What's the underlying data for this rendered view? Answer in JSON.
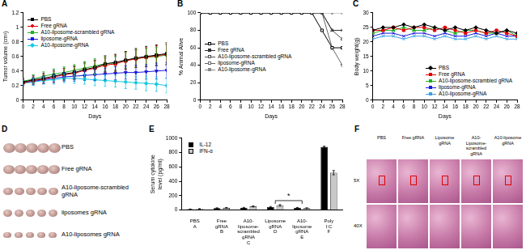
{
  "chart_data": [
    {
      "panel": "A",
      "type": "line",
      "x_label": "Days",
      "y_label": "Tumor volume (cm³)",
      "x": [
        0,
        2,
        4,
        6,
        8,
        10,
        12,
        14,
        16,
        18,
        20,
        22,
        24,
        26,
        28
      ],
      "xlim": [
        0,
        28
      ],
      "xticks": [
        0,
        2,
        4,
        6,
        8,
        10,
        12,
        14,
        16,
        18,
        20,
        22,
        24,
        26,
        28
      ],
      "ylim": [
        0,
        1.2
      ],
      "yticks": [
        0,
        0.2,
        0.4,
        0.6,
        0.8,
        1,
        1.2
      ],
      "grid": false,
      "legend": "upper left",
      "series": [
        {
          "name": "PBS",
          "color": "#000000",
          "marker": "square",
          "values": [
            0.25,
            0.28,
            0.3,
            0.33,
            0.36,
            0.38,
            0.42,
            0.45,
            0.5,
            0.52,
            0.55,
            0.58,
            0.6,
            0.62,
            0.64
          ],
          "errors": [
            0.05,
            0.06,
            0.07,
            0.08,
            0.08,
            0.09,
            0.1,
            0.1,
            0.11,
            0.11,
            0.12,
            0.13,
            0.14,
            0.14,
            0.15
          ]
        },
        {
          "name": "Free gRNA",
          "color": "#e00000",
          "marker": "circle",
          "values": [
            0.24,
            0.27,
            0.29,
            0.32,
            0.35,
            0.37,
            0.41,
            0.44,
            0.48,
            0.5,
            0.54,
            0.57,
            0.59,
            0.61,
            0.63
          ],
          "errors": [
            0.05,
            0.05,
            0.06,
            0.07,
            0.08,
            0.09,
            0.09,
            0.1,
            0.1,
            0.11,
            0.12,
            0.12,
            0.13,
            0.14,
            0.14
          ]
        },
        {
          "name": "A10-liposome-scrambled gRNA",
          "color": "#22b022",
          "marker": "triangle",
          "values": [
            0.26,
            0.29,
            0.33,
            0.36,
            0.38,
            0.41,
            0.44,
            0.47,
            0.5,
            0.5,
            0.55,
            0.57,
            0.59,
            0.6,
            0.62
          ],
          "errors": [
            0.05,
            0.06,
            0.06,
            0.07,
            0.08,
            0.08,
            0.09,
            0.1,
            0.1,
            0.1,
            0.11,
            0.12,
            0.12,
            0.13,
            0.14
          ]
        },
        {
          "name": "liposome-gRNA",
          "color": "#1a1adc",
          "marker": "triangle-down",
          "values": [
            0.24,
            0.26,
            0.28,
            0.3,
            0.32,
            0.33,
            0.34,
            0.35,
            0.36,
            0.37,
            0.38,
            0.38,
            0.39,
            0.4,
            0.41
          ],
          "errors": [
            0.04,
            0.05,
            0.05,
            0.06,
            0.06,
            0.07,
            0.07,
            0.08,
            0.08,
            0.09,
            0.09,
            0.1,
            0.1,
            0.11,
            0.11
          ]
        },
        {
          "name": "A10-liposome-gRNA",
          "color": "#16c8e0",
          "marker": "diamond",
          "values": [
            0.23,
            0.25,
            0.27,
            0.28,
            0.3,
            0.3,
            0.29,
            0.28,
            0.27,
            0.26,
            0.25,
            0.24,
            0.23,
            0.22,
            0.2
          ],
          "errors": [
            0.04,
            0.05,
            0.05,
            0.06,
            0.06,
            0.07,
            0.07,
            0.08,
            0.08,
            0.08,
            0.09,
            0.09,
            0.1,
            0.1,
            0.1
          ]
        }
      ]
    },
    {
      "panel": "B",
      "type": "line",
      "x_label": "Days",
      "y_label": "% Animal Alive",
      "x": [
        0,
        2,
        4,
        6,
        8,
        10,
        12,
        14,
        16,
        18,
        20,
        22,
        24,
        26,
        28
      ],
      "xlim": [
        0,
        28
      ],
      "xticks": [
        0,
        2,
        4,
        6,
        8,
        10,
        12,
        14,
        16,
        18,
        20,
        22,
        24,
        26,
        28
      ],
      "ylim": [
        0,
        100
      ],
      "yticks": [
        0,
        20,
        40,
        60,
        80,
        100
      ],
      "grid": false,
      "legend": "center left",
      "series": [
        {
          "name": "PBS",
          "color": "#000000",
          "marker": "open-square",
          "values": [
            100,
            100,
            100,
            100,
            100,
            100,
            100,
            100,
            100,
            100,
            100,
            100,
            80,
            60,
            60
          ]
        },
        {
          "name": "Free gRNA",
          "color": "#333333",
          "marker": "x",
          "values": [
            100,
            100,
            100,
            100,
            100,
            100,
            100,
            100,
            100,
            100,
            100,
            100,
            100,
            80,
            80
          ]
        },
        {
          "name": "A10-liposome-scrambled gRNA",
          "color": "#555555",
          "marker": "open-triangle",
          "values": [
            100,
            100,
            100,
            100,
            100,
            100,
            100,
            100,
            100,
            100,
            100,
            100,
            100,
            80,
            70
          ]
        },
        {
          "name": "liposome-gRNA",
          "color": "#666666",
          "marker": "open-triangle-down",
          "values": [
            100,
            100,
            100,
            100,
            100,
            100,
            100,
            100,
            100,
            100,
            100,
            100,
            100,
            60,
            40
          ]
        },
        {
          "name": "A10-liposome-gRNA",
          "color": "#888888",
          "marker": "triangle-down",
          "values": [
            100,
            100,
            100,
            100,
            100,
            100,
            100,
            100,
            100,
            100,
            100,
            100,
            100,
            100,
            100
          ]
        }
      ]
    },
    {
      "panel": "C",
      "type": "line",
      "x_label": "Days",
      "y_label": "Body weight(g)",
      "x": [
        0,
        2,
        4,
        6,
        8,
        10,
        12,
        14,
        16,
        18,
        20,
        22,
        24,
        26,
        28
      ],
      "xlim": [
        0,
        28
      ],
      "xticks": [
        0,
        2,
        4,
        6,
        8,
        10,
        12,
        14,
        16,
        18,
        20,
        22,
        24,
        26,
        28
      ],
      "ylim": [
        0,
        30
      ],
      "yticks": [
        0,
        5,
        10,
        15,
        20,
        25,
        30
      ],
      "grid": false,
      "legend": "lower right",
      "series": [
        {
          "name": "PBS",
          "color": "#000000",
          "marker": "diamond",
          "values": [
            24,
            25,
            25,
            26,
            25,
            26,
            25,
            24,
            25,
            24,
            25,
            24,
            23,
            24,
            23
          ]
        },
        {
          "name": "Free gRNA",
          "color": "#e00000",
          "marker": "square",
          "values": [
            24,
            24,
            25,
            24,
            25,
            25,
            24,
            25,
            24,
            23,
            24,
            23,
            24,
            23,
            22
          ]
        },
        {
          "name": "A10-liposome-scrambled gRNA",
          "color": "#22b022",
          "marker": "triangle",
          "values": [
            23,
            24,
            24,
            25,
            24,
            24,
            25,
            24,
            23,
            24,
            24,
            23,
            23,
            24,
            22
          ]
        },
        {
          "name": "liposome-gRNA",
          "color": "#1a1adc",
          "marker": "x",
          "values": [
            22,
            23,
            23,
            22,
            23,
            23,
            22,
            23,
            22,
            22,
            23,
            22,
            23,
            22,
            22
          ]
        },
        {
          "name": "A10-liposome-gRNA",
          "color": "#3aa0e0",
          "marker": "x",
          "values": [
            21,
            22,
            22,
            21,
            22,
            22,
            21,
            22,
            21,
            21,
            22,
            21,
            22,
            21,
            21
          ]
        }
      ]
    },
    {
      "panel": "E",
      "type": "bar",
      "y_label": "Serum cytokine level (pg/ml)",
      "categories": [
        "PBS",
        "Free gRNA",
        "A10-liposome-scrambled gRNA",
        "Liposome gRNA",
        "A10-liposome gRNA",
        "Poly I:C"
      ],
      "group_labels": [
        "A",
        "B",
        "C",
        "D",
        "E",
        "F"
      ],
      "ylim": [
        0,
        1000
      ],
      "yticks": [
        0,
        200,
        400,
        600,
        800,
        1000
      ],
      "grid": false,
      "legend": "upper left",
      "series": [
        {
          "name": "IL-12",
          "color": "#000000",
          "values": [
            10,
            25,
            30,
            40,
            30,
            880
          ],
          "errors": [
            3,
            5,
            6,
            8,
            5,
            10
          ]
        },
        {
          "name": "IFN-α",
          "color": "#c8c8c8",
          "values": [
            15,
            30,
            50,
            65,
            25,
            520
          ],
          "errors": [
            3,
            5,
            8,
            10,
            5,
            30
          ]
        }
      ],
      "annotations": [
        {
          "text": "*",
          "between": [
            3,
            4
          ],
          "y": 130
        }
      ]
    }
  ],
  "images": [
    {
      "panel": "D",
      "rows": [
        "PBS",
        "Free gRNA",
        "A10-liposome-scrambled gRNA",
        "liposomes gRNA",
        "A10-liposomes gRNA"
      ]
    },
    {
      "panel": "F",
      "columns": [
        "PBS",
        "Free gRNA",
        "Liposome gRNA",
        "A10-Liposome-scrambled gRNA",
        "A10-liposome gRNA"
      ],
      "rows": [
        "5X",
        "40X"
      ]
    }
  ]
}
